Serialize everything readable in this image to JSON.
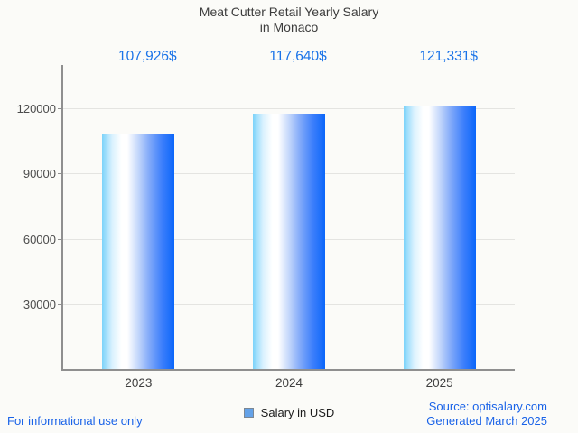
{
  "title": {
    "line1": "Meat Cutter Retail Yearly Salary",
    "line2": "in Monaco"
  },
  "chart_data": {
    "type": "bar",
    "title": "Meat Cutter Retail Yearly Salary in Monaco",
    "categories": [
      "2023",
      "2024",
      "2025"
    ],
    "series": [
      {
        "name": "Salary in USD",
        "values": [
          107926,
          117640,
          121331
        ]
      }
    ],
    "values": [
      107926,
      117640,
      121331
    ],
    "value_labels": [
      "107,926$",
      "117,640$",
      "121,331$"
    ],
    "xlabel": "",
    "ylabel": "",
    "ylim": [
      0,
      140000
    ],
    "yticks": [
      30000,
      60000,
      90000,
      120000
    ],
    "ytick_labels": [
      "30000",
      "60000",
      "90000",
      "120000"
    ],
    "grid": true,
    "legend_position": "bottom"
  },
  "legend": {
    "label": "Salary in USD"
  },
  "footer": {
    "left": "For informational use only",
    "source": "Source: optisalary.com",
    "generated": "Generated March 2025"
  },
  "colors": {
    "accent_blue": "#1a73e8",
    "footer_blue": "#1a63e8",
    "bar_gradient_left": "#7cd3fa",
    "bar_gradient_mid": "#ffffff",
    "bar_gradient_right": "#0b66fa",
    "legend_swatch_fill": "#64a2e8",
    "legend_swatch_border": "#7b8794",
    "axis_gray": "#8f8f8f",
    "gridline_gray": "#e4e4e1",
    "title_gray": "#3d3d3d",
    "background": "#fbfbf8"
  }
}
